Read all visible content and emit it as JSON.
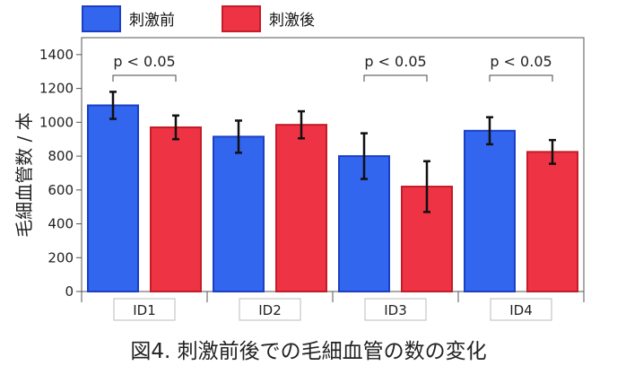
{
  "chart_data": {
    "type": "bar",
    "ylabel": "毛細血管数 / 本",
    "categories": [
      "ID1",
      "ID2",
      "ID3",
      "ID4"
    ],
    "series": [
      {
        "name": "刺激前",
        "color": "#3366ee",
        "edge": "#1c3fc4",
        "values": [
          1100,
          915,
          800,
          950
        ],
        "err": [
          80,
          95,
          135,
          80
        ]
      },
      {
        "name": "刺激後",
        "color": "#ee3344",
        "edge": "#c41c28",
        "values": [
          970,
          985,
          620,
          825
        ],
        "err": [
          70,
          80,
          150,
          70
        ]
      }
    ],
    "ylim": [
      0,
      1500
    ],
    "yticks": [
      0,
      200,
      400,
      600,
      800,
      1000,
      1200,
      1400
    ],
    "annotations": [
      {
        "category": "ID1",
        "text": "p < 0.05"
      },
      {
        "category": "ID3",
        "text": "p < 0.05"
      },
      {
        "category": "ID4",
        "text": "p < 0.05"
      }
    ],
    "legend": "top-left",
    "grid": false
  },
  "caption": "図4. 刺激前後での毛細血管の数の変化"
}
